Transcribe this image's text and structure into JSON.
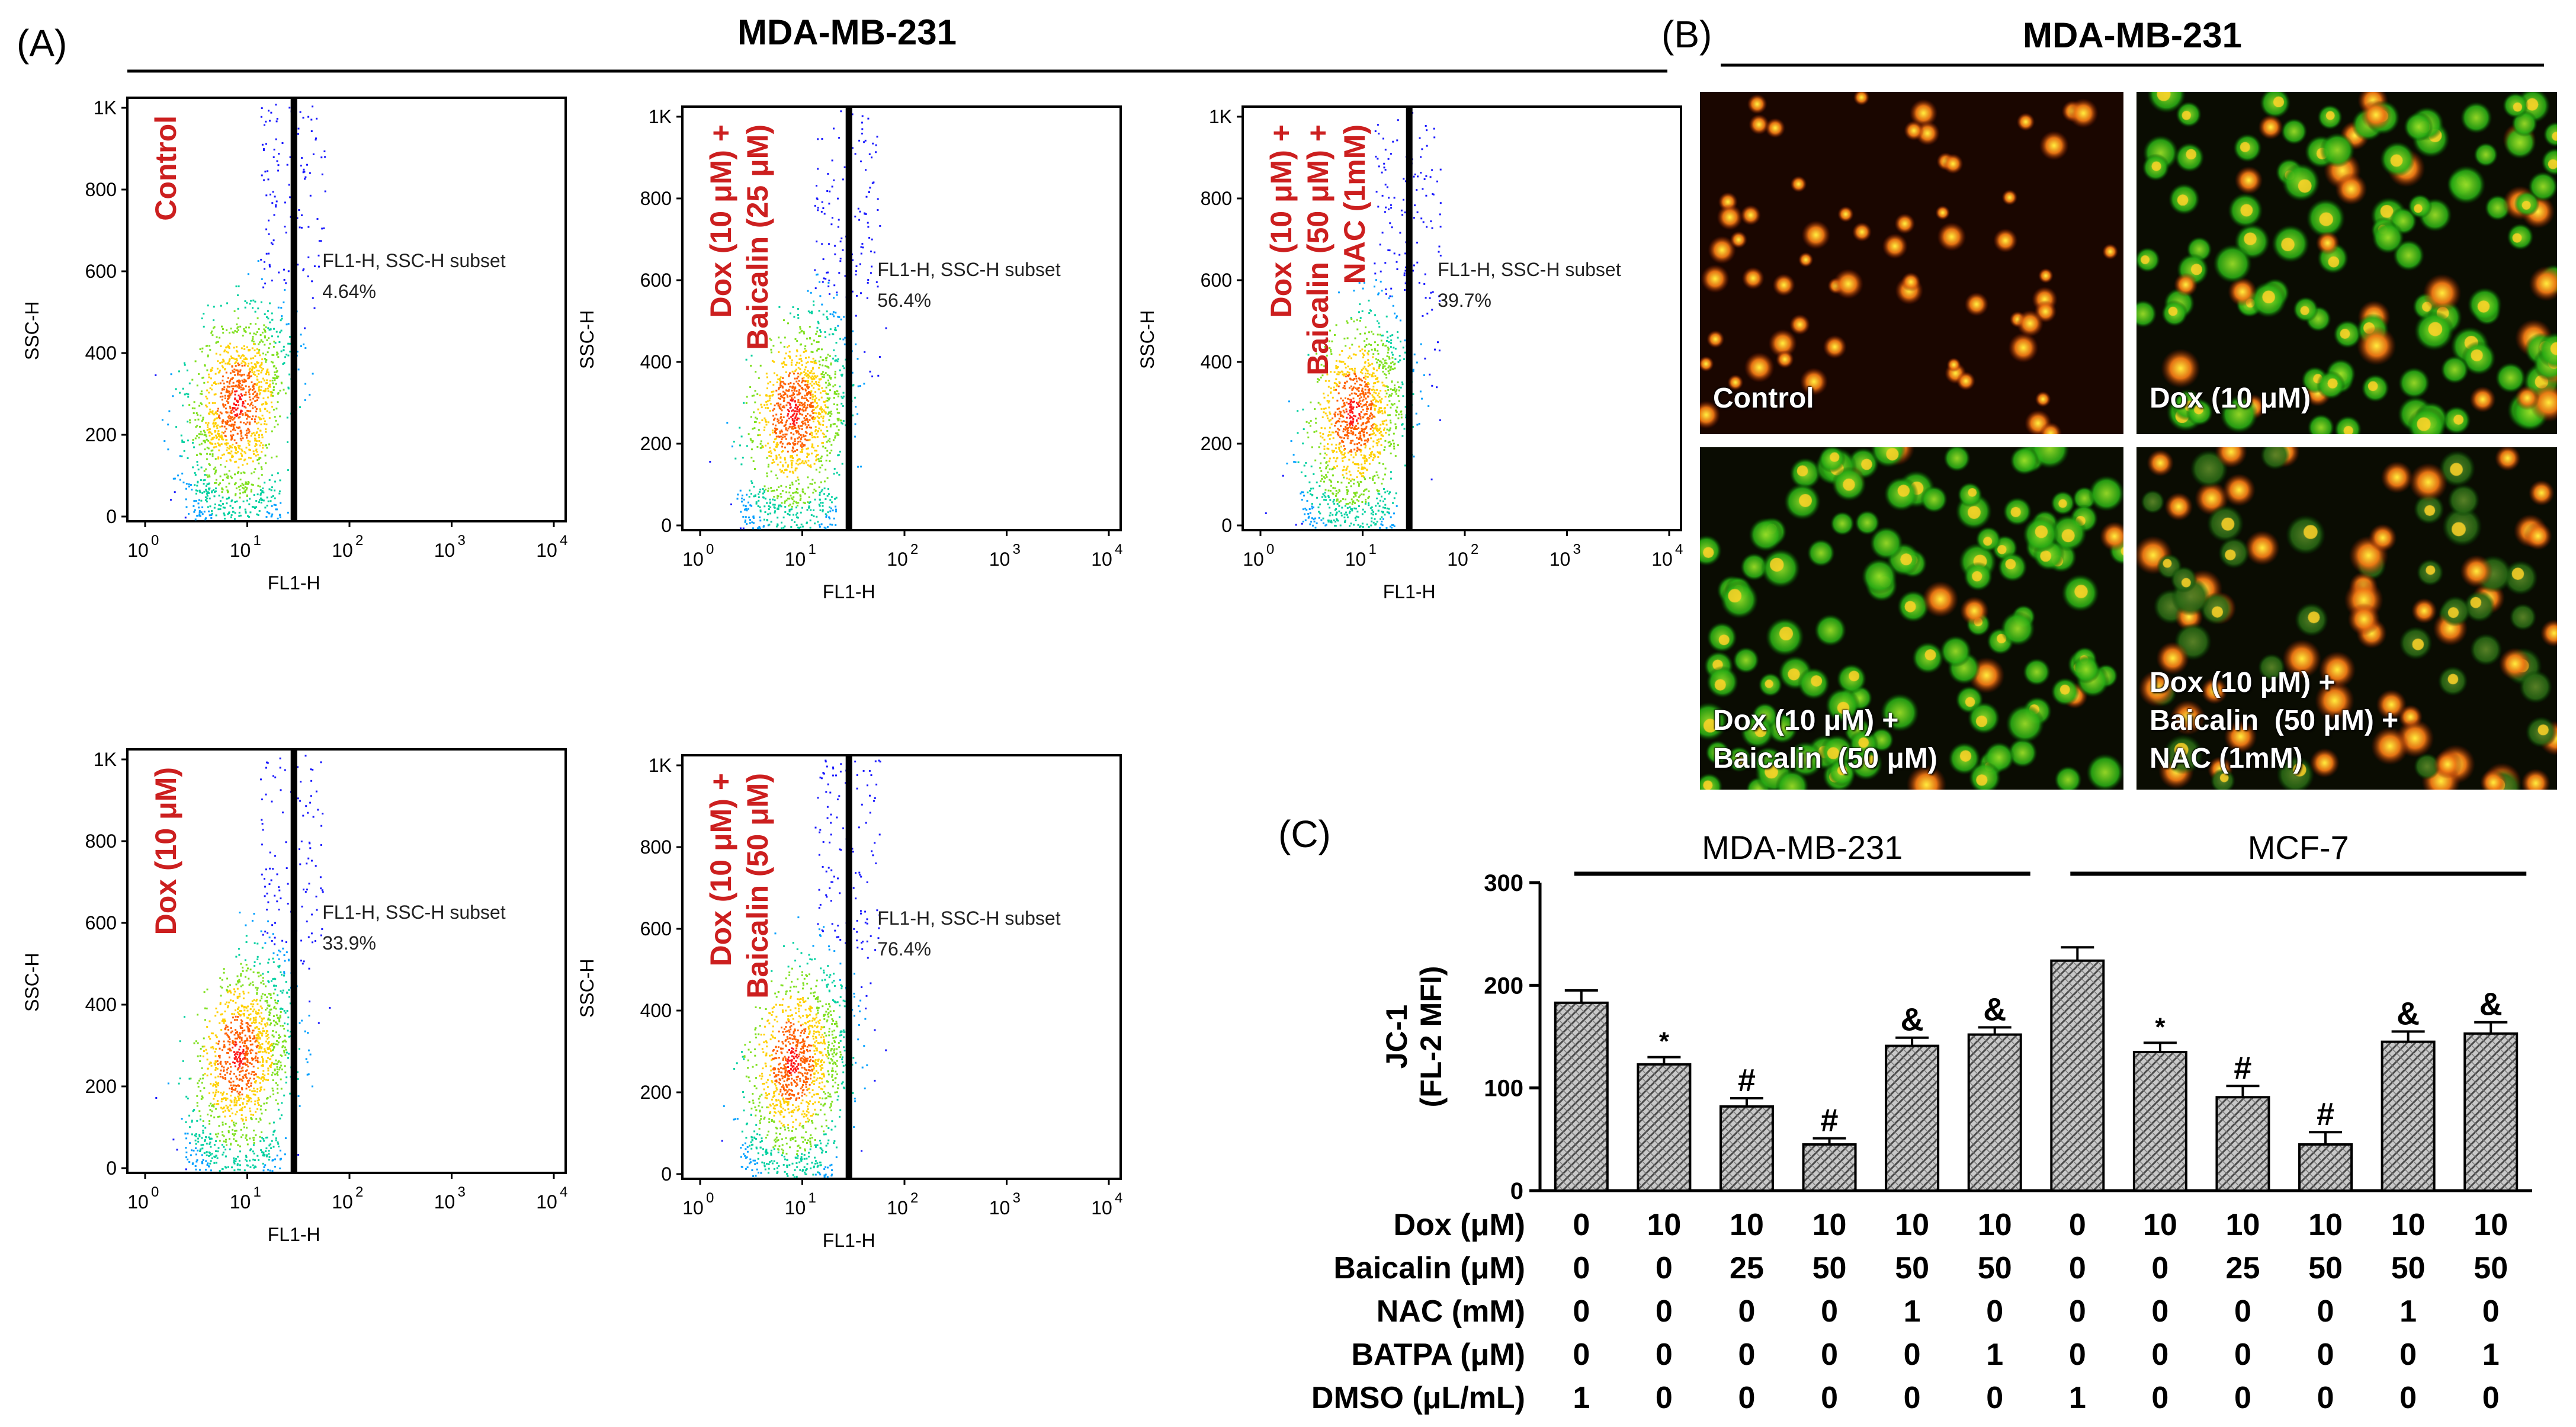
{
  "panel_labels": {
    "a": "(A)",
    "b": "(B)",
    "c": "(C)"
  },
  "panel_a": {
    "title": "MDA-MB-231",
    "x_axis_label": "FL1-H",
    "y_axis_label": "SSC-H",
    "y_ticks": [
      "0",
      "200",
      "400",
      "600",
      "800",
      "1K"
    ],
    "x_ticks": [
      "10",
      "10",
      "10",
      "10",
      "10"
    ],
    "x_tick_exponents": [
      "0",
      "1",
      "2",
      "3",
      "4"
    ],
    "gate_label": "FL1-H, SSC-H subset",
    "plots": [
      {
        "condition_lines": [
          "Control"
        ],
        "percent": "4.64%"
      },
      {
        "condition_lines": [
          "Dox (10 μM) +",
          "Baicalin  (25 μM)"
        ],
        "percent": "56.4%"
      },
      {
        "condition_lines": [
          "Dox (10 μM) +",
          "Baicalin  (50 μM) +",
          "NAC (1mM)"
        ],
        "percent": "39.7%"
      },
      {
        "condition_lines": [
          "Dox (10 μM)"
        ],
        "percent": "33.9%"
      },
      {
        "condition_lines": [
          "Dox (10 μM) +",
          "Baicalin  (50 μM)"
        ],
        "percent": "76.4%"
      }
    ]
  },
  "panel_b": {
    "title": "MDA-MB-231",
    "images": [
      {
        "label_lines": [
          "Control"
        ],
        "green_fraction": 0.0
      },
      {
        "label_lines": [
          "Dox (10 μM)"
        ],
        "green_fraction": 0.8
      },
      {
        "label_lines": [
          "Dox (10 μM) +",
          "Baicalin  (50 μM)"
        ],
        "green_fraction": 0.9
      },
      {
        "label_lines": [
          "Dox (10 μM) +",
          "Baicalin  (50 μM) +",
          "NAC (1mM)"
        ],
        "green_fraction": 0.45
      }
    ]
  },
  "chart_data": {
    "type": "bar",
    "groups": [
      {
        "name": "MDA-MB-231",
        "bars": 6
      },
      {
        "name": "MCF-7",
        "bars": 6
      }
    ],
    "values": [
      183,
      123,
      82,
      45,
      141,
      152,
      224,
      135,
      91,
      45,
      145,
      153
    ],
    "errors": [
      12,
      7,
      8,
      6,
      8,
      7,
      13,
      9,
      11,
      12,
      10,
      11
    ],
    "annotations": [
      "",
      "*",
      "#",
      "#",
      "&",
      "&",
      "",
      "*",
      "#",
      "#",
      "&",
      "&"
    ],
    "ylabel_lines": [
      "JC-1",
      "(FL-2 MFI)"
    ],
    "ylim": [
      0,
      300
    ],
    "y_ticks": [
      "0",
      "100",
      "200",
      "300"
    ],
    "treatments": [
      {
        "label": "Dox (μM)",
        "values": [
          "0",
          "10",
          "10",
          "10",
          "10",
          "10",
          "0",
          "10",
          "10",
          "10",
          "10",
          "10"
        ]
      },
      {
        "label": "Baicalin (μM)",
        "values": [
          "0",
          "0",
          "25",
          "50",
          "50",
          "50",
          "0",
          "0",
          "25",
          "50",
          "50",
          "50"
        ]
      },
      {
        "label": "NAC (mM)",
        "values": [
          "0",
          "0",
          "0",
          "0",
          "1",
          "0",
          "0",
          "0",
          "0",
          "0",
          "1",
          "0"
        ]
      },
      {
        "label": "BATPA (μM)",
        "values": [
          "0",
          "0",
          "0",
          "0",
          "0",
          "1",
          "0",
          "0",
          "0",
          "0",
          "0",
          "1"
        ]
      },
      {
        "label": "DMSO (μL/mL)",
        "values": [
          "1",
          "0",
          "0",
          "0",
          "0",
          "0",
          "1",
          "0",
          "0",
          "0",
          "0",
          "0"
        ]
      }
    ]
  },
  "colors": {
    "condition_red": "#cc1f1f",
    "gate_line": "#000000",
    "bar_fill": "#bdbdbd",
    "bar_hatch": "#555555"
  }
}
